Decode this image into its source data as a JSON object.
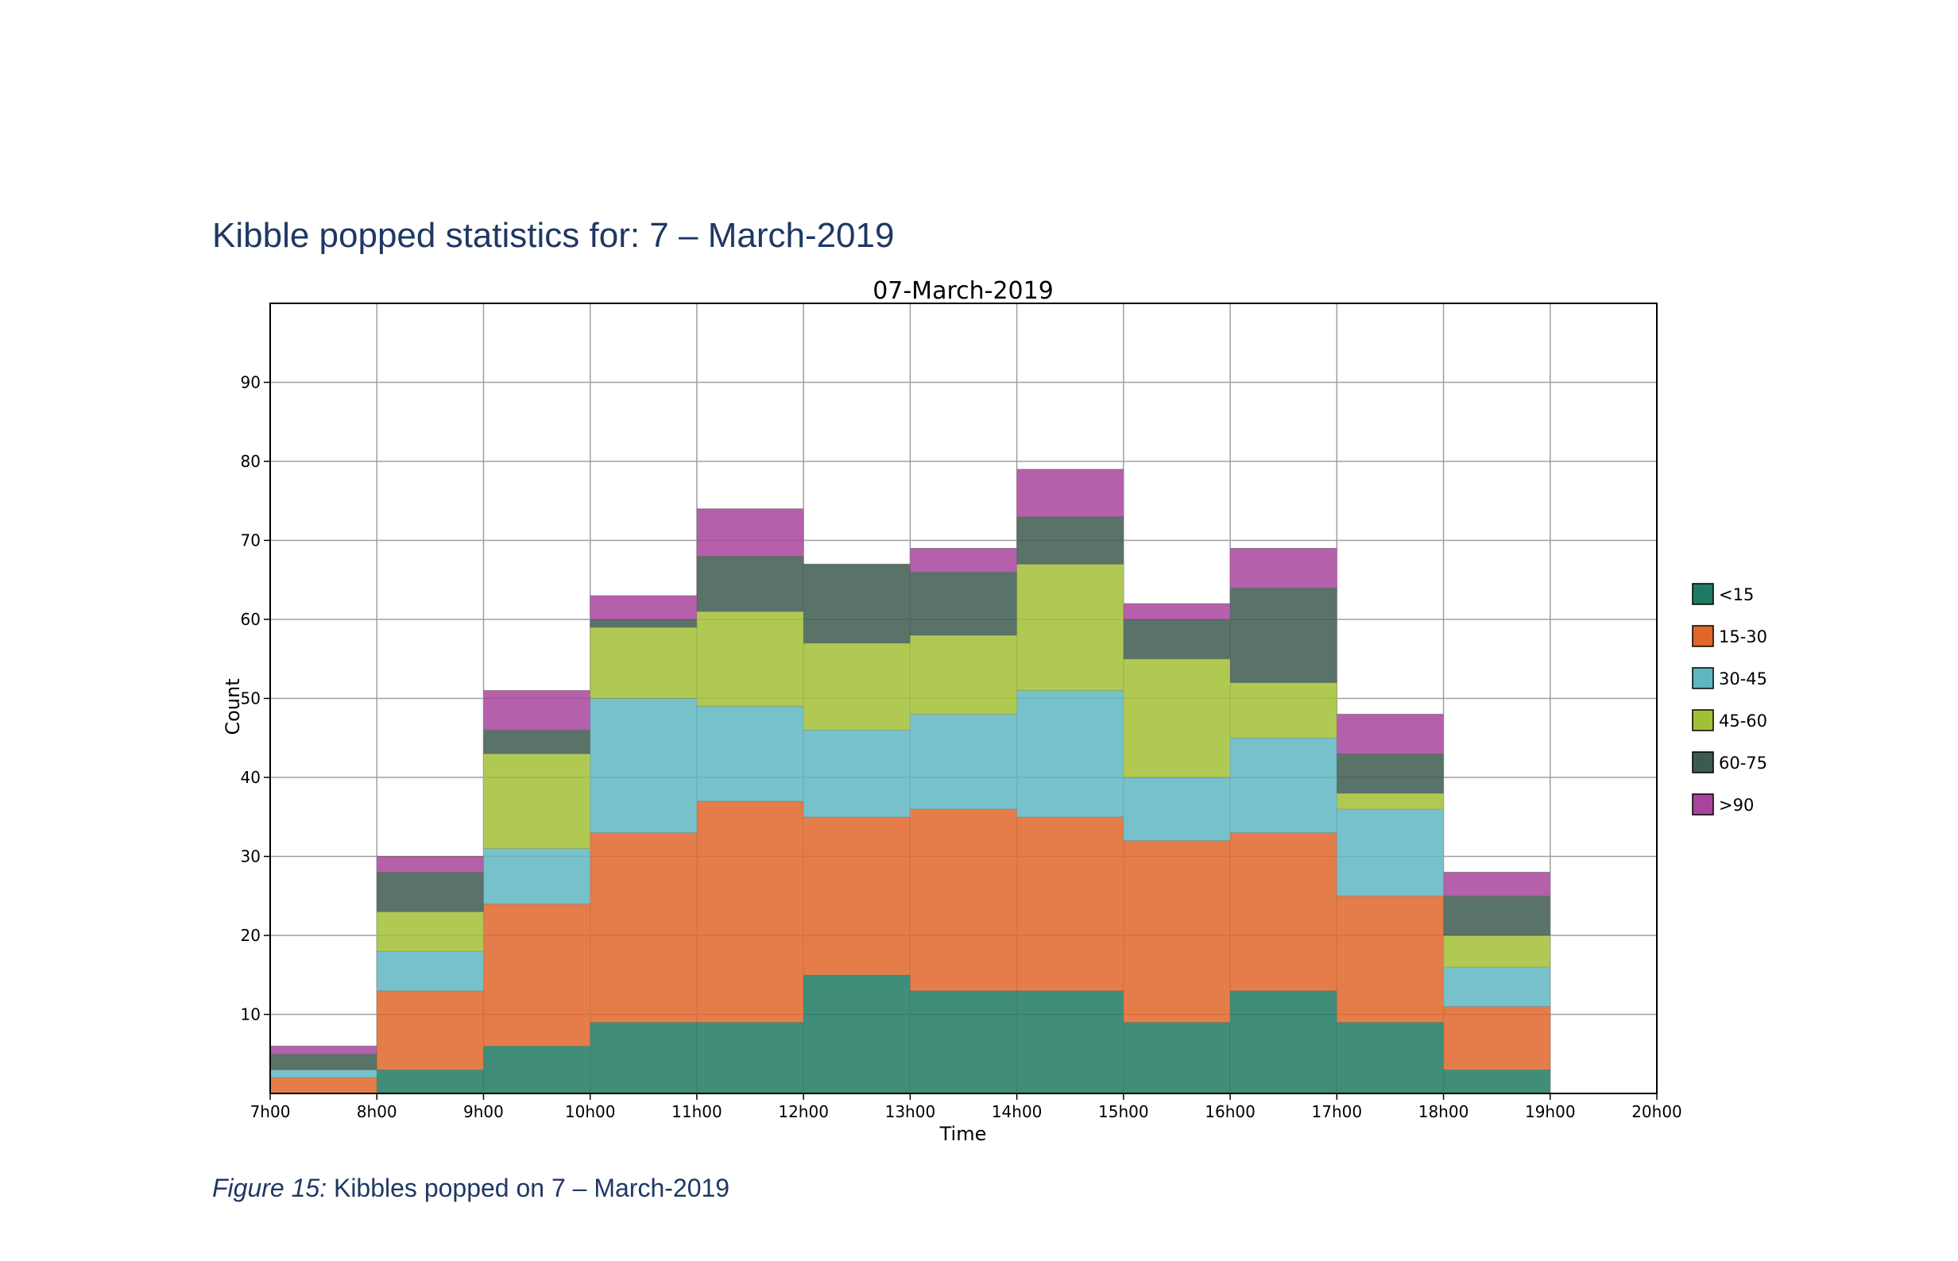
{
  "document": {
    "heading": "Kibble popped statistics for: 7 – March-2019",
    "caption_prefix": "Figure 15:",
    "caption_text": " Kibbles popped on 7 – March-2019"
  },
  "chart_data": {
    "type": "bar",
    "stacked": true,
    "title": "07-March-2019",
    "xlabel": "Time",
    "ylabel": "Count",
    "ylim": [
      0,
      100
    ],
    "yticks": [
      10,
      20,
      30,
      40,
      50,
      60,
      70,
      80,
      90
    ],
    "xticks": [
      "7h00",
      "8h00",
      "9h00",
      "10h00",
      "11h00",
      "12h00",
      "13h00",
      "14h00",
      "15h00",
      "16h00",
      "17h00",
      "18h00",
      "19h00",
      "20h00"
    ],
    "categories": [
      "7h00",
      "8h00",
      "9h00",
      "10h00",
      "11h00",
      "12h00",
      "13h00",
      "14h00",
      "15h00",
      "16h00",
      "17h00",
      "18h00"
    ],
    "grid": true,
    "legend_position": "right",
    "series": [
      {
        "name": "<15",
        "color": "#1f7a63",
        "values": [
          0,
          3,
          6,
          9,
          9,
          15,
          13,
          13,
          9,
          13,
          9,
          3
        ]
      },
      {
        "name": "15-30",
        "color": "#e0662a",
        "values": [
          2,
          10,
          18,
          24,
          28,
          20,
          23,
          22,
          23,
          20,
          16,
          8
        ]
      },
      {
        "name": "30-45",
        "color": "#5fb6c2",
        "values": [
          1,
          5,
          7,
          17,
          12,
          11,
          12,
          16,
          8,
          12,
          11,
          5
        ]
      },
      {
        "name": "45-60",
        "color": "#a2c035",
        "values": [
          0,
          5,
          12,
          9,
          12,
          11,
          10,
          16,
          15,
          7,
          2,
          4
        ]
      },
      {
        "name": "60-75",
        "color": "#3d5a4f",
        "values": [
          2,
          5,
          3,
          1,
          7,
          10,
          8,
          6,
          5,
          12,
          5,
          5
        ]
      },
      {
        "name": ">90",
        "color": "#a8449c",
        "values": [
          1,
          2,
          5,
          3,
          6,
          0,
          3,
          6,
          2,
          5,
          5,
          3
        ]
      }
    ]
  }
}
